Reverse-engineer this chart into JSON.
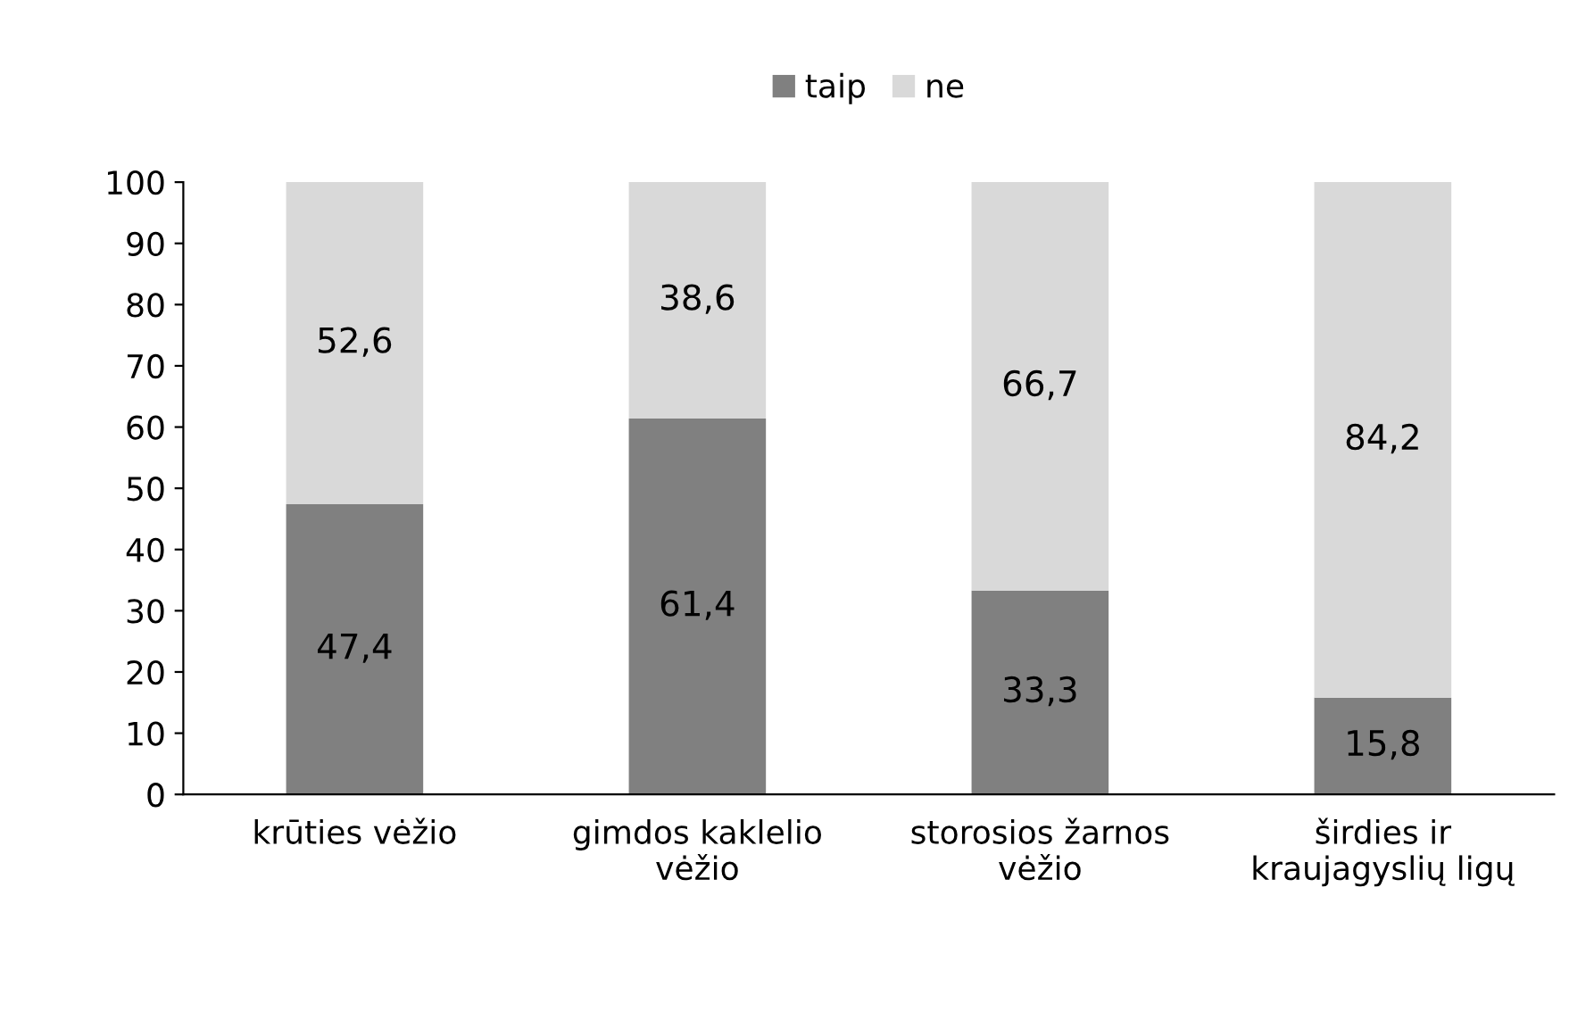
{
  "chart_data": {
    "type": "bar",
    "stacked": true,
    "categories": [
      "krūties vėžio",
      "gimdos kaklelio\nvėžio",
      "storosios žarnos\nvėžio",
      "širdies ir\nkraujagyslių ligų"
    ],
    "series": [
      {
        "name": "taip",
        "color": "#808080",
        "values": [
          47.4,
          61.4,
          33.3,
          15.8
        ],
        "value_labels": [
          "47,4",
          "61,4",
          "33,3",
          "15,8"
        ]
      },
      {
        "name": "ne",
        "color": "#d9d9d9",
        "values": [
          52.6,
          38.6,
          66.7,
          84.2
        ],
        "value_labels": [
          "52,6",
          "38,6",
          "66,7",
          "84,2"
        ]
      }
    ],
    "ylim": [
      0,
      100
    ],
    "yticks": [
      0,
      10,
      20,
      30,
      40,
      50,
      60,
      70,
      80,
      90,
      100
    ],
    "grid": false,
    "legend": "top"
  }
}
